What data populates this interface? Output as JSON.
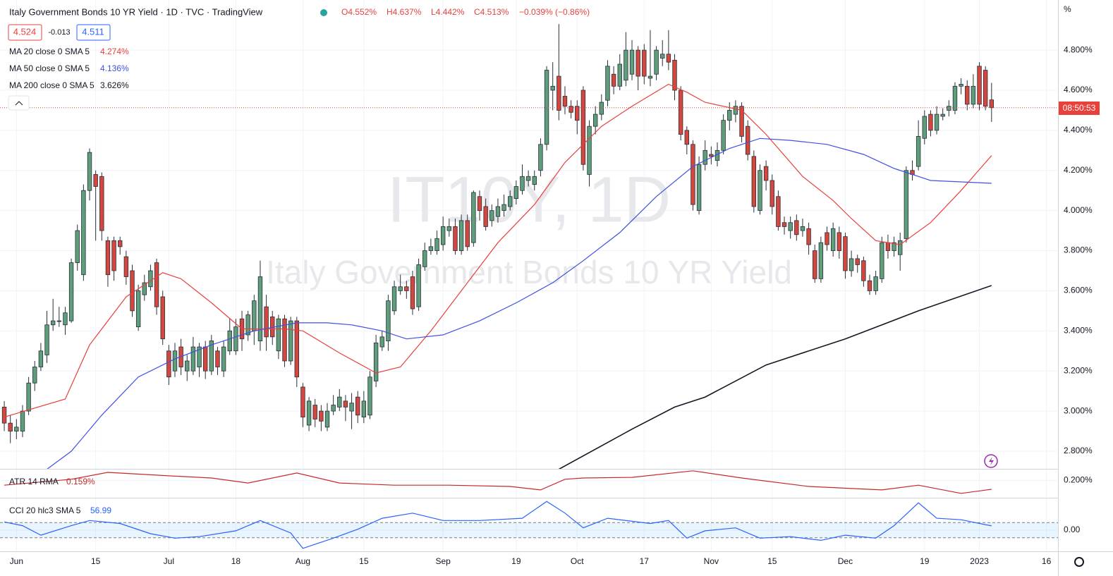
{
  "header": {
    "title": "Italy Government Bonds 10 YR Yield · 1D · TVC · TradingView",
    "ohlc": [
      "O4.552%",
      "H4.637%",
      "L4.442%",
      "C4.513%"
    ],
    "change": "−0.039% (−0.86%)"
  },
  "quote": {
    "bid": "4.524",
    "spread": "-0.013",
    "ask": "4.511"
  },
  "watermark": {
    "symbol": "IT10Y, 1D",
    "name": "Italy Government Bonds 10 YR Yield"
  },
  "unit": "%",
  "countdown": "08:50:53",
  "chart_data": [
    {
      "type": "candlestick",
      "up_color": "#5e9e7b",
      "down_color": "#d4473f",
      "grid": true,
      "xlim": [
        -0.7,
        172.9
      ],
      "ylim": [
        2.712,
        5.05
      ],
      "yticks": [
        {
          "value": 2.8,
          "label": "2.800%"
        },
        {
          "value": 3.0,
          "label": "3.000%"
        },
        {
          "value": 3.2,
          "label": "3.200%"
        },
        {
          "value": 3.4,
          "label": "3.400%"
        },
        {
          "value": 3.6,
          "label": "3.600%"
        },
        {
          "value": 3.8,
          "label": "3.800%"
        },
        {
          "value": 4.0,
          "label": "4.000%"
        },
        {
          "value": 4.2,
          "label": "4.200%"
        },
        {
          "value": 4.4,
          "label": "4.400%"
        },
        {
          "value": 4.6,
          "label": "4.600%"
        },
        {
          "value": 4.8,
          "label": "4.800%"
        }
      ],
      "xticks": [
        {
          "value": 2,
          "label": "Jun"
        },
        {
          "value": 15,
          "label": "15"
        },
        {
          "value": 27,
          "label": "Jul"
        },
        {
          "value": 38,
          "label": "18"
        },
        {
          "value": 49,
          "label": "Aug"
        },
        {
          "value": 59,
          "label": "15"
        },
        {
          "value": 72,
          "label": "Sep"
        },
        {
          "value": 84,
          "label": "19"
        },
        {
          "value": 94,
          "label": "Oct"
        },
        {
          "value": 105,
          "label": "17"
        },
        {
          "value": 116,
          "label": "Nov"
        },
        {
          "value": 126,
          "label": "15"
        },
        {
          "value": 138,
          "label": "Dec"
        },
        {
          "value": 151,
          "label": "19"
        },
        {
          "value": 160,
          "label": "2023"
        },
        {
          "value": 171,
          "label": "16"
        }
      ],
      "open": [
        3.02,
        2.94,
        2.9,
        2.9,
        3.0,
        3.14,
        3.22,
        3.28,
        3.43,
        3.45,
        3.43,
        3.45,
        3.74,
        3.68,
        4.1,
        4.18,
        4.17,
        3.85,
        3.85,
        3.85,
        3.77,
        3.7,
        3.42,
        3.58,
        3.62,
        3.74,
        3.57,
        3.3,
        3.2,
        3.32,
        3.2,
        3.2,
        3.22,
        3.32,
        3.2,
        3.3,
        3.2,
        3.3,
        3.3,
        3.46,
        3.38,
        3.4,
        3.35,
        3.52,
        3.47,
        3.3,
        3.46,
        3.25,
        3.45,
        3.12,
        2.93,
        3.03,
        3.0,
        2.92,
        3.0,
        3.02,
        3.05,
        3.0,
        3.07,
        2.97,
        2.98,
        3.15,
        3.32,
        3.35,
        3.5,
        3.6,
        3.62,
        3.67,
        3.52,
        3.72,
        3.8,
        3.8,
        3.83,
        3.9,
        3.92,
        3.8,
        3.95,
        3.84,
        4.07,
        4.02,
        3.95,
        3.97,
        4.0,
        4.02,
        4.06,
        4.1,
        4.15,
        4.13,
        4.2,
        4.33,
        4.6,
        4.67,
        4.57,
        4.52,
        4.52,
        4.6,
        4.18,
        4.42,
        4.48,
        4.55,
        4.68,
        4.62,
        4.65,
        4.68,
        4.8,
        4.8,
        4.66,
        4.68,
        4.76,
        4.78,
        4.75,
        4.6,
        4.4,
        4.33,
        4.0,
        4.23,
        4.28,
        4.25,
        4.3,
        4.45,
        4.48,
        4.52,
        4.42,
        4.27,
        4.0,
        4.22,
        4.15,
        4.07,
        3.94,
        3.9,
        3.95,
        3.9,
        3.91,
        3.8,
        3.66,
        3.89,
        3.8,
        3.89,
        3.87,
        3.7,
        3.76,
        3.75,
        3.65,
        3.6,
        3.66,
        3.84,
        3.8,
        3.78,
        3.86,
        4.2,
        4.22,
        4.36,
        4.48,
        4.4,
        4.47,
        4.5,
        4.5,
        4.62,
        4.62,
        4.53,
        4.72,
        4.7,
        4.552
      ],
      "high": [
        3.05,
        2.98,
        2.96,
        3.03,
        3.17,
        3.25,
        3.34,
        3.5,
        3.56,
        3.52,
        3.52,
        3.76,
        3.93,
        4.13,
        4.31,
        4.2,
        4.19,
        3.87,
        3.87,
        3.87,
        3.8,
        3.73,
        3.63,
        3.68,
        3.73,
        3.76,
        3.6,
        3.33,
        3.34,
        3.36,
        3.28,
        3.37,
        3.34,
        3.35,
        3.38,
        3.32,
        3.35,
        3.46,
        3.46,
        3.5,
        3.5,
        3.58,
        3.75,
        3.58,
        3.5,
        3.48,
        3.48,
        3.47,
        3.47,
        3.14,
        3.07,
        3.06,
        3.03,
        3.04,
        3.08,
        3.11,
        3.08,
        3.09,
        3.1,
        3.1,
        3.2,
        3.38,
        3.4,
        3.58,
        3.65,
        3.68,
        3.65,
        3.7,
        3.76,
        3.84,
        3.86,
        3.9,
        3.97,
        3.96,
        3.96,
        3.98,
        3.98,
        4.1,
        4.1,
        4.06,
        4.03,
        4.06,
        4.08,
        4.1,
        4.15,
        4.23,
        4.2,
        4.2,
        4.36,
        4.72,
        4.74,
        4.93,
        4.62,
        4.55,
        4.55,
        4.62,
        4.45,
        4.52,
        4.58,
        4.75,
        4.72,
        4.78,
        4.89,
        4.85,
        4.82,
        4.83,
        4.9,
        4.82,
        4.85,
        4.9,
        4.78,
        4.62,
        4.42,
        4.35,
        4.27,
        4.35,
        4.32,
        4.34,
        4.48,
        4.54,
        4.55,
        4.54,
        4.45,
        4.3,
        4.23,
        4.25,
        4.18,
        4.1,
        3.97,
        3.97,
        3.98,
        3.96,
        3.94,
        3.83,
        3.87,
        3.92,
        3.94,
        3.92,
        3.89,
        3.8,
        3.78,
        3.77,
        3.68,
        3.7,
        3.87,
        3.88,
        3.87,
        3.89,
        4.22,
        4.25,
        4.45,
        4.5,
        4.5,
        4.52,
        4.51,
        4.55,
        4.64,
        4.66,
        4.65,
        4.68,
        4.74,
        4.72,
        4.637
      ],
      "low": [
        2.9,
        2.84,
        2.86,
        2.87,
        2.98,
        3.1,
        3.2,
        3.24,
        3.4,
        3.42,
        3.38,
        3.44,
        3.7,
        3.65,
        4.05,
        3.85,
        3.85,
        3.62,
        3.65,
        3.78,
        3.63,
        3.47,
        3.4,
        3.55,
        3.6,
        3.48,
        3.33,
        3.13,
        3.17,
        3.18,
        3.15,
        3.18,
        3.17,
        3.16,
        3.18,
        3.18,
        3.17,
        3.28,
        3.28,
        3.3,
        3.35,
        3.33,
        3.3,
        3.3,
        3.33,
        3.26,
        3.22,
        3.23,
        3.12,
        2.92,
        2.9,
        2.92,
        2.9,
        2.9,
        2.98,
        3.0,
        2.95,
        2.91,
        2.94,
        2.94,
        2.96,
        3.12,
        3.3,
        3.3,
        3.48,
        3.58,
        3.56,
        3.48,
        3.5,
        3.7,
        3.78,
        3.78,
        3.8,
        3.87,
        3.78,
        3.78,
        3.8,
        3.82,
        3.95,
        3.9,
        3.92,
        3.94,
        3.97,
        4.0,
        4.03,
        4.08,
        4.12,
        4.1,
        4.17,
        4.3,
        4.5,
        4.45,
        4.48,
        4.46,
        4.38,
        4.2,
        4.12,
        4.38,
        4.45,
        4.52,
        4.58,
        4.6,
        4.62,
        4.65,
        4.6,
        4.63,
        4.62,
        4.65,
        4.72,
        4.7,
        4.55,
        4.35,
        4.28,
        4.0,
        3.98,
        4.2,
        4.23,
        4.22,
        4.28,
        4.4,
        4.44,
        4.34,
        4.25,
        3.99,
        3.98,
        4.1,
        3.98,
        3.9,
        3.88,
        3.86,
        3.85,
        3.87,
        3.78,
        3.64,
        3.64,
        3.8,
        3.77,
        3.76,
        3.66,
        3.67,
        3.69,
        3.62,
        3.58,
        3.58,
        3.64,
        3.76,
        3.77,
        3.7,
        3.84,
        4.15,
        4.2,
        4.33,
        4.37,
        4.38,
        4.45,
        4.47,
        4.48,
        4.58,
        4.5,
        4.51,
        4.5,
        4.5,
        4.442
      ],
      "close": [
        2.94,
        2.9,
        2.92,
        3.0,
        3.14,
        3.22,
        3.3,
        3.43,
        3.45,
        3.45,
        3.49,
        3.74,
        3.9,
        4.1,
        4.29,
        4.12,
        3.9,
        3.68,
        3.7,
        3.82,
        3.67,
        3.5,
        3.6,
        3.64,
        3.7,
        3.52,
        3.36,
        3.17,
        3.3,
        3.22,
        3.25,
        3.32,
        3.32,
        3.2,
        3.35,
        3.22,
        3.32,
        3.4,
        3.42,
        3.36,
        3.48,
        3.55,
        3.67,
        3.37,
        3.37,
        3.46,
        3.25,
        3.45,
        3.17,
        2.97,
        3.05,
        2.96,
        2.95,
        3.0,
        3.03,
        3.07,
        3.02,
        3.04,
        2.98,
        3.05,
        3.17,
        3.34,
        3.37,
        3.55,
        3.62,
        3.62,
        3.6,
        3.51,
        3.73,
        3.8,
        3.82,
        3.86,
        3.92,
        3.92,
        3.8,
        3.95,
        3.82,
        4.09,
        4.0,
        3.92,
        4.0,
        4.02,
        4.03,
        4.07,
        4.12,
        4.17,
        4.17,
        4.17,
        4.33,
        4.7,
        4.62,
        4.5,
        4.52,
        4.49,
        4.45,
        4.23,
        4.42,
        4.48,
        4.54,
        4.72,
        4.62,
        4.73,
        4.8,
        4.8,
        4.67,
        4.67,
        4.67,
        4.8,
        4.78,
        4.74,
        4.6,
        4.38,
        4.33,
        4.03,
        4.23,
        4.3,
        4.27,
        4.3,
        4.45,
        4.5,
        4.52,
        4.37,
        4.28,
        4.02,
        4.2,
        4.15,
        4.02,
        3.92,
        3.92,
        3.94,
        3.88,
        3.92,
        3.83,
        3.66,
        3.84,
        3.83,
        3.91,
        3.8,
        3.7,
        3.76,
        3.73,
        3.65,
        3.6,
        3.67,
        3.84,
        3.8,
        3.84,
        3.85,
        4.2,
        4.18,
        4.37,
        4.47,
        4.4,
        4.48,
        4.48,
        4.52,
        4.62,
        4.63,
        4.53,
        4.62,
        4.53,
        4.52,
        4.513
      ],
      "series": [
        {
          "name": "MA 20 close 0 SMA 5",
          "color": "#e8413c",
          "last_label": "4.274%",
          "x": [
            0,
            10,
            14,
            20,
            26,
            29,
            34,
            39,
            46,
            49,
            55,
            61,
            65,
            70,
            76,
            81,
            87,
            92,
            98,
            103,
            109,
            112,
            115,
            121,
            125,
            131,
            136,
            139,
            143,
            147,
            152,
            157,
            162
          ],
          "values": [
            2.97,
            3.06,
            3.33,
            3.57,
            3.69,
            3.66,
            3.54,
            3.41,
            3.41,
            3.4,
            3.29,
            3.19,
            3.22,
            3.4,
            3.64,
            3.84,
            4.03,
            4.24,
            4.42,
            4.52,
            4.63,
            4.59,
            4.54,
            4.5,
            4.38,
            4.17,
            4.05,
            3.96,
            3.85,
            3.83,
            3.94,
            4.1,
            4.274
          ]
        },
        {
          "name": "MA 50 close 0 SMA 5",
          "color": "#3f51e0",
          "last_label": "4.136%",
          "x": [
            7,
            11,
            16,
            22,
            28,
            34,
            41,
            48,
            53,
            57,
            62,
            66,
            72,
            78,
            84,
            90,
            95,
            101,
            107,
            113,
            119,
            124,
            129,
            135,
            141,
            146,
            152,
            162
          ],
          "values": [
            2.71,
            2.8,
            2.98,
            3.17,
            3.26,
            3.33,
            3.4,
            3.44,
            3.44,
            3.43,
            3.4,
            3.36,
            3.38,
            3.45,
            3.54,
            3.64,
            3.75,
            3.89,
            4.07,
            4.22,
            4.31,
            4.36,
            4.35,
            4.33,
            4.28,
            4.21,
            4.15,
            4.136
          ]
        },
        {
          "name": "MA 200 close 0 SMA 5",
          "color": "#131722",
          "last_label": "3.626%",
          "x": [
            91,
            103,
            110,
            115,
            125,
            138,
            150,
            162
          ],
          "values": [
            2.71,
            2.91,
            3.02,
            3.07,
            3.23,
            3.36,
            3.5,
            3.626
          ]
        }
      ]
    },
    {
      "type": "line",
      "name": "ATR 14 RMA",
      "color": "#c62828",
      "last_label": "0.159%",
      "xlim": [
        -0.7,
        172.9
      ],
      "ylim": [
        0.12,
        0.25
      ],
      "yticks": [
        {
          "value": 0.2,
          "label": "0.200%"
        }
      ],
      "x": [
        0,
        11,
        17,
        27,
        34,
        40,
        48,
        55,
        64,
        73,
        83,
        88,
        92,
        95,
        103,
        113,
        121,
        132,
        144,
        150,
        157,
        162
      ],
      "values": [
        0.178,
        0.205,
        0.237,
        0.221,
        0.211,
        0.188,
        0.234,
        0.188,
        0.178,
        0.178,
        0.172,
        0.156,
        0.205,
        0.211,
        0.214,
        0.244,
        0.211,
        0.172,
        0.156,
        0.178,
        0.14,
        0.159
      ]
    },
    {
      "type": "line",
      "name": "CCI 20 hlc3 SMA 5",
      "color": "#2962ff",
      "xlim": [
        -0.7,
        172.9
      ],
      "ylim": [
        -280,
        420
      ],
      "yticks": [
        {
          "value": 0,
          "label": "0.00"
        }
      ],
      "bands": [
        100,
        -100
      ],
      "x": [
        0,
        3,
        6,
        11,
        14,
        19,
        24,
        28,
        32,
        38,
        42,
        47,
        49,
        54,
        58,
        62,
        67,
        72,
        78,
        85,
        89,
        92,
        95,
        99,
        106,
        109,
        112,
        115,
        120,
        124,
        129,
        134,
        138,
        143,
        146,
        150,
        153,
        157,
        162
      ],
      "values": [
        109,
        60,
        -66,
        60,
        128,
        89,
        -47,
        -105,
        -86,
        -8,
        128,
        -37,
        -241,
        -105,
        12,
        158,
        226,
        128,
        128,
        158,
        381,
        226,
        31,
        158,
        89,
        128,
        -105,
        -8,
        31,
        -105,
        -86,
        -134,
        -66,
        -105,
        60,
        362,
        158,
        138,
        56.99
      ]
    }
  ]
}
